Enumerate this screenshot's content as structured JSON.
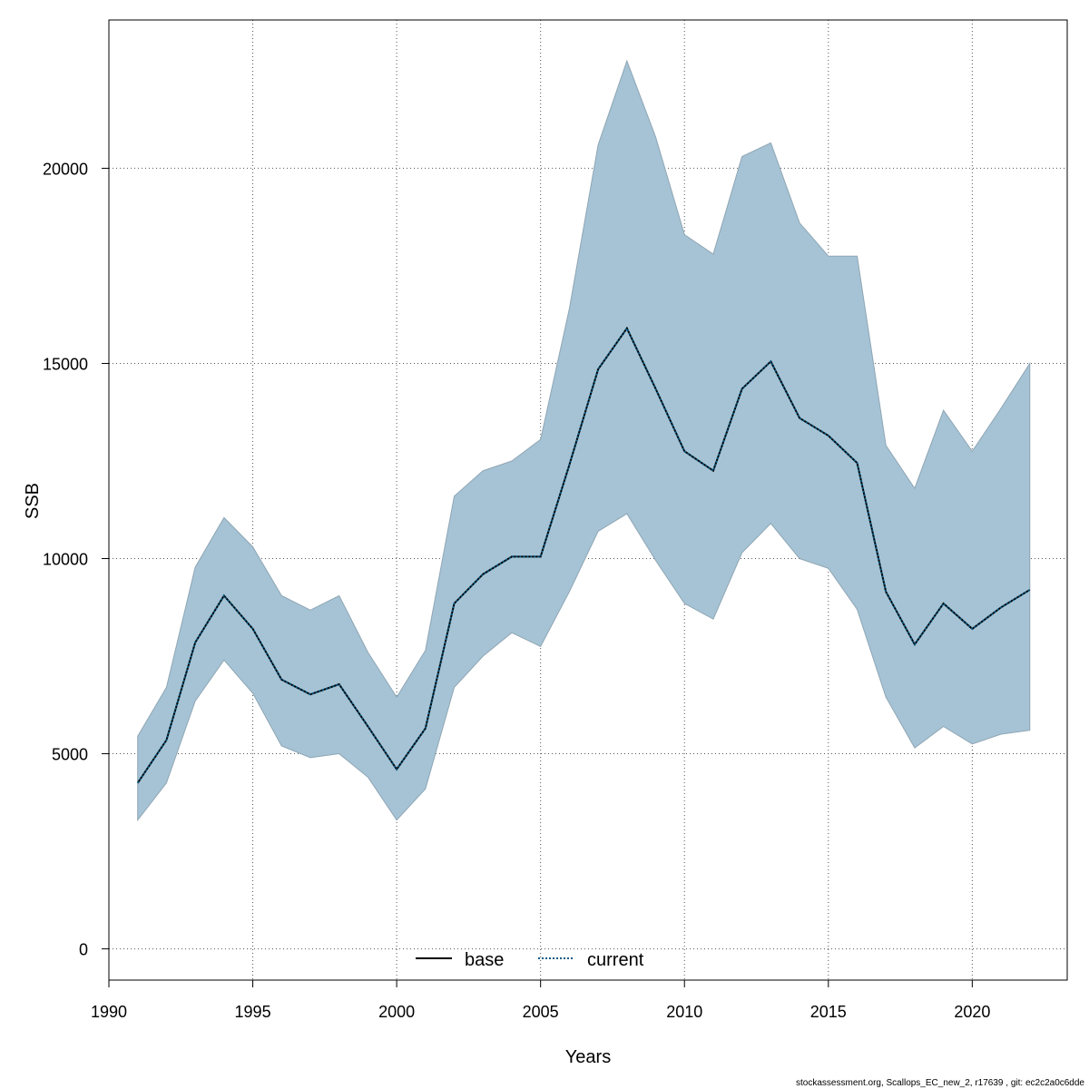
{
  "chart_data": {
    "type": "line",
    "xlabel": "Years",
    "ylabel": "SSB",
    "xlim": [
      1990,
      2023.3
    ],
    "ylim": [
      -800,
      23800
    ],
    "x_ticks": [
      1990,
      1995,
      2000,
      2005,
      2010,
      2015,
      2020
    ],
    "y_ticks": [
      0,
      5000,
      10000,
      15000,
      20000
    ],
    "grid": true,
    "legend": {
      "position": "bottom-center",
      "entries": [
        {
          "label": "base",
          "color": "#000000",
          "style": "solid"
        },
        {
          "label": "current",
          "color": "#0b5a85",
          "style": "dotted"
        }
      ]
    },
    "x": [
      1991,
      1992,
      1993,
      1994,
      1995,
      1996,
      1997,
      1998,
      1999,
      2000,
      2001,
      2002,
      2003,
      2004,
      2005,
      2006,
      2007,
      2008,
      2009,
      2010,
      2011,
      2012,
      2013,
      2014,
      2015,
      2016,
      2017,
      2018,
      2019,
      2020,
      2021,
      2022
    ],
    "series": [
      {
        "name": "current",
        "values": [
          4250,
          5350,
          7850,
          9050,
          8200,
          6900,
          6520,
          6780,
          5700,
          4600,
          5650,
          8850,
          9600,
          10050,
          10050,
          12400,
          14850,
          15900,
          14350,
          12750,
          12250,
          14350,
          15050,
          13600,
          13150,
          12450,
          9150,
          7800,
          8850,
          8200,
          8750,
          9200
        ]
      }
    ],
    "band": {
      "color": "#a5c3d4",
      "edge_color": "#8fa6b5",
      "upper": [
        5450,
        6700,
        9780,
        11050,
        10300,
        9050,
        8680,
        9050,
        7600,
        6450,
        7650,
        11600,
        12250,
        12500,
        13050,
        16400,
        20600,
        22750,
        20800,
        18300,
        17800,
        20300,
        20650,
        18600,
        17750,
        17750,
        12900,
        11800,
        13800,
        12750,
        13850,
        15000
      ],
      "lower": [
        3300,
        4250,
        6350,
        7400,
        6550,
        5200,
        4900,
        5000,
        4400,
        3300,
        4100,
        6700,
        7500,
        8100,
        7750,
        9150,
        10700,
        11150,
        9950,
        8850,
        8450,
        10150,
        10900,
        10000,
        9750,
        8700,
        6450,
        5150,
        5700,
        5250,
        5500,
        5600
      ]
    }
  },
  "footer": "stockassessment.org, Scallops_EC_new_2, r17639 , git: ec2c2a0c6dde"
}
